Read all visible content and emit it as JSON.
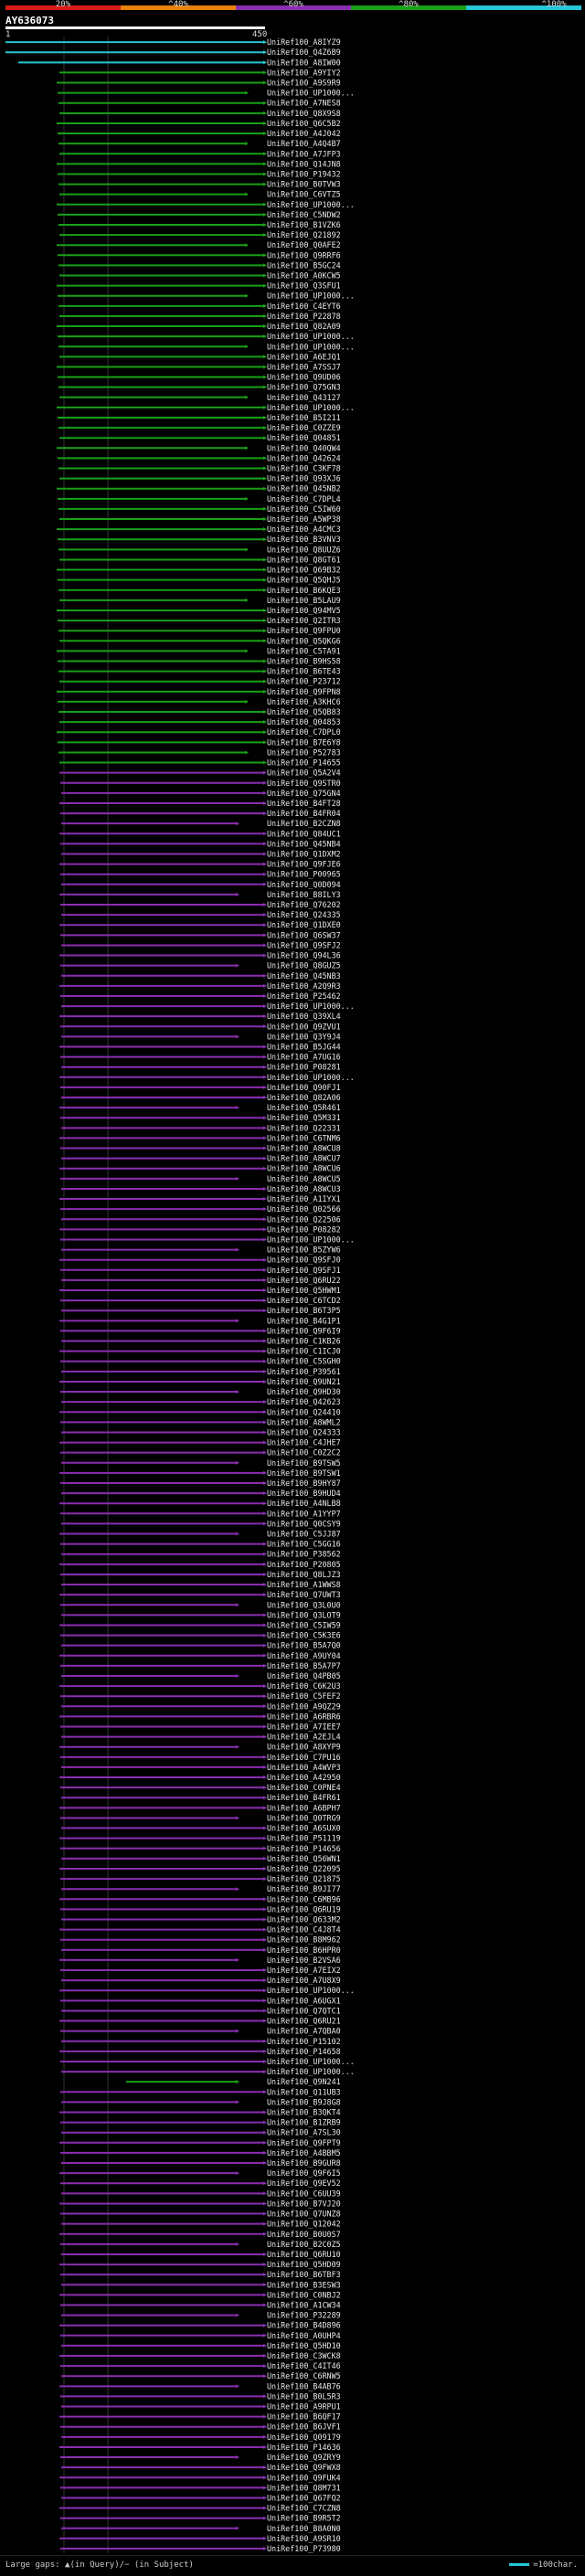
{
  "header": {
    "percent_labels": [
      "20%",
      "^40%",
      "^60%",
      "^80%",
      "^100%"
    ],
    "scale_colors": [
      "#d81d1d",
      "#e8820c",
      "#8a2eb0",
      "#18a018",
      "#26c6d6"
    ],
    "query_id": "AY636073",
    "tick_start": "1",
    "tick_end": "450"
  },
  "legend": {
    "left": "Large gaps: ▲(in Query)/− (in Subject)",
    "right": "=100char."
  },
  "chart_data": {
    "type": "alignment-overview",
    "query_length": 450,
    "hits": [
      "UniRef100_A8IYZ9",
      "UniRef100_Q4Z6B9",
      "UniRef100_A8IW00",
      "UniRef100_A9YIY2",
      "UniRef100_A9S9R9",
      "UniRef100_UP1000...",
      "UniRef100_A7NES8",
      "UniRef100_Q8X9S8",
      "UniRef100_Q6C5B2",
      "UniRef100_A4J042",
      "UniRef100_A4Q4B7",
      "UniRef100_A7JFP3",
      "UniRef100_Q14JN8",
      "UniRef100_P19432",
      "UniRef100_B0TVW3",
      "UniRef100_C6VTZ5",
      "UniRef100_UP1000...",
      "UniRef100_C5NDW2",
      "UniRef100_B1VZK6",
      "UniRef100_Q21892",
      "UniRef100_Q0AFE2",
      "UniRef100_Q9RRF6",
      "UniRef100_B5GC24",
      "UniRef100_A0KCW5",
      "UniRef100_Q3SFU1",
      "UniRef100_UP1000...",
      "UniRef100_C4EYT6",
      "UniRef100_P22878",
      "UniRef100_Q82A09",
      "UniRef100_UP1000...",
      "UniRef100_UP1000...",
      "UniRef100_A6EJQ1",
      "UniRef100_A7SSJ7",
      "UniRef100_Q9UD06",
      "UniRef100_Q75GN3",
      "UniRef100_Q43127",
      "UniRef100_UP1000...",
      "UniRef100_B5I211",
      "UniRef100_C0ZZE9",
      "UniRef100_Q04851",
      "UniRef100_Q40QW4",
      "UniRef100_Q42624",
      "UniRef100_C3KF78",
      "UniRef100_Q93XJ6",
      "UniRef100_Q45NB2",
      "UniRef100_C7DPL4",
      "UniRef100_C5IW60",
      "UniRef100_A5WP38",
      "UniRef100_A4CMC3",
      "UniRef100_B3VNV3",
      "UniRef100_Q8UUZ6",
      "UniRef100_Q8GT61",
      "UniRef100_Q69B32",
      "UniRef100_Q5QHJ5",
      "UniRef100_B6KQE3",
      "UniRef100_B5LAU9",
      "UniRef100_Q94MV5",
      "UniRef100_Q2ITR3",
      "UniRef100_Q9FPU0",
      "UniRef100_Q5QKG6",
      "UniRef100_C5TA91",
      "UniRef100_B9HS58",
      "UniRef100_B6TE43",
      "UniRef100_P23712",
      "UniRef100_Q9FPN8",
      "UniRef100_A3KHC6",
      "UniRef100_Q5QB83",
      "UniRef100_Q04853",
      "UniRef100_C7DPL0",
      "UniRef100_B7E6Y8",
      "UniRef100_P52783",
      "UniRef100_P14655",
      "UniRef100_Q5A2V4",
      "UniRef100_Q9STR0",
      "UniRef100_Q75GN4",
      "UniRef100_B4FT28",
      "UniRef100_B4FR04",
      "UniRef100_B2CZN8",
      "UniRef100_Q84UC1",
      "UniRef100_Q45NB4",
      "UniRef100_Q1DXM2",
      "UniRef100_Q9FJE6",
      "UniRef100_P00965",
      "UniRef100_Q0D094",
      "UniRef100_B8ILY3",
      "UniRef100_Q76202",
      "UniRef100_Q24335",
      "UniRef100_Q1DXE0",
      "UniRef100_Q6SW37",
      "UniRef100_Q9SFJ2",
      "UniRef100_Q94L36",
      "UniRef100_Q8GUZ5",
      "UniRef100_Q45NB3",
      "UniRef100_A2Q9R3",
      "UniRef100_P25462",
      "UniRef100_UP1000...",
      "UniRef100_Q39XL4",
      "UniRef100_Q9ZVU1",
      "UniRef100_Q3Y9J4",
      "UniRef100_B5JG44",
      "UniRef100_A7UG16",
      "UniRef100_P08281",
      "UniRef100_UP1000...",
      "UniRef100_Q90FJ1",
      "UniRef100_Q82A06",
      "UniRef100_Q5R461",
      "UniRef100_Q5M331",
      "UniRef100_Q22331",
      "UniRef100_C6TNM6",
      "UniRef100_A8WCU8",
      "UniRef100_A8WCU7",
      "UniRef100_A8WCU6",
      "UniRef100_A8WCU5",
      "UniRef100_A8WCU3",
      "UniRef100_A1IYX1",
      "UniRef100_Q02566",
      "UniRef100_Q22506",
      "UniRef100_P08282",
      "UniRef100_UP1000...",
      "UniRef100_B5ZYW6",
      "UniRef100_Q9SFJ0",
      "UniRef100_Q9SFJ1",
      "UniRef100_Q6RU22",
      "UniRef100_Q5HWM1",
      "UniRef100_C6TCD2",
      "UniRef100_B6T3P5",
      "UniRef100_B4G1P1",
      "UniRef100_Q9F6I9",
      "UniRef100_C1KB26",
      "UniRef100_C1ICJ0",
      "UniRef100_C5SGH0",
      "UniRef100_P39561",
      "UniRef100_Q9UN21",
      "UniRef100_Q9HD30",
      "UniRef100_Q42623",
      "UniRef100_Q24410",
      "UniRef100_A8WML2",
      "UniRef100_Q24333",
      "UniRef100_C4JHE7",
      "UniRef100_C0Z2C2",
      "UniRef100_B9TSW5",
      "UniRef100_B9TSW1",
      "UniRef100_B9HY87",
      "UniRef100_B9HUD4",
      "UniRef100_A4NLB8",
      "UniRef100_A1YYP7",
      "UniRef100_Q0CSY9",
      "UniRef100_C5JJ87",
      "UniRef100_C5GG16",
      "UniRef100_P38562",
      "UniRef100_P20805",
      "UniRef100_Q8LJZ3",
      "UniRef100_A1WWS8",
      "UniRef100_Q7UWT3",
      "UniRef100_Q3L0U0",
      "UniRef100_Q3LOT9",
      "UniRef100_C5IW59",
      "UniRef100_C5K3E6",
      "UniRef100_B5A7Q0",
      "UniRef100_A9UY04",
      "UniRef100_B5A7P7",
      "UniRef100_Q4PB05",
      "UniRef100_C6K2U3",
      "UniRef100_C5FEF2",
      "UniRef100_A9QZ29",
      "UniRef100_A6RBR6",
      "UniRef100_A7IEE7",
      "UniRef100_A2EJL4",
      "UniRef100_A8XYP9",
      "UniRef100_C7PU16",
      "UniRef100_A4WVP3",
      "UniRef100_A42950",
      "UniRef100_C0PNE4",
      "UniRef100_B4FR61",
      "UniRef100_A6BPH7",
      "UniRef100_Q0TRG9",
      "UniRef100_A6SUX0",
      "UniRef100_P51119",
      "UniRef100_P14656",
      "UniRef100_Q56WN1",
      "UniRef100_Q22095",
      "UniRef100_Q21875",
      "UniRef100_B9JI77",
      "UniRef100_C6MB96",
      "UniRef100_Q6RU19",
      "UniRef100_Q633M2",
      "UniRef100_C4J8T4",
      "UniRef100_B8M962",
      "UniRef100_B6HPR0",
      "UniRef100_B2VSA6",
      "UniRef100_A7EIX2",
      "UniRef100_A7U8X9",
      "UniRef100_UP1000...",
      "UniRef100_A6UGX1",
      "UniRef100_Q7QTC1",
      "UniRef100_Q6RU21",
      "UniRef100_A7QBA0",
      "UniRef100_P15102",
      "UniRef100_P14658",
      "UniRef100_UP1000...",
      "UniRef100_UP1000...",
      "UniRef100_Q9N241",
      "UniRef100_Q11UB3",
      "UniRef100_B9J8G8",
      "UniRef100_B3QKT4",
      "UniRef100_B1ZRB9",
      "UniRef100_A7SL30",
      "UniRef100_Q9FPT9",
      "UniRef100_A4BBM5",
      "UniRef100_B9GUR8",
      "UniRef100_Q9F6I5",
      "UniRef100_Q9EV52",
      "UniRef100_C6UU39",
      "UniRef100_B7VJ20",
      "UniRef100_Q7UNZ8",
      "UniRef100_Q12042",
      "UniRef100_B0U0S7",
      "UniRef100_B2C0Z5",
      "UniRef100_Q6RU10",
      "UniRef100_Q5HD09",
      "UniRef100_B6TBF3",
      "UniRef100_B3ESW3",
      "UniRef100_C0NBJ2",
      "UniRef100_A1CW34",
      "UniRef100_P32289",
      "UniRef100_B4D896",
      "UniRef100_A0UHP4",
      "UniRef100_Q5HD10",
      "UniRef100_C3WCK8",
      "UniRef100_C4IT46",
      "UniRef100_C6RNW5",
      "UniRef100_B4AB76",
      "UniRef100_B0L5R3",
      "UniRef100_A9RPU1",
      "UniRef100_B6QF17",
      "UniRef100_B6JVF1",
      "UniRef100_Q09179",
      "UniRef100_P14636",
      "UniRef100_Q9ZRY9",
      "UniRef100_Q9FWX8",
      "UniRef100_Q9FUK4",
      "UniRef100_Q8M731",
      "UniRef100_Q67FQ2",
      "UniRef100_C7CZN8",
      "UniRef100_B9R5T2",
      "UniRef100_B8A0N0",
      "UniRef100_A9SR10",
      "UniRef100_P73980"
    ]
  }
}
